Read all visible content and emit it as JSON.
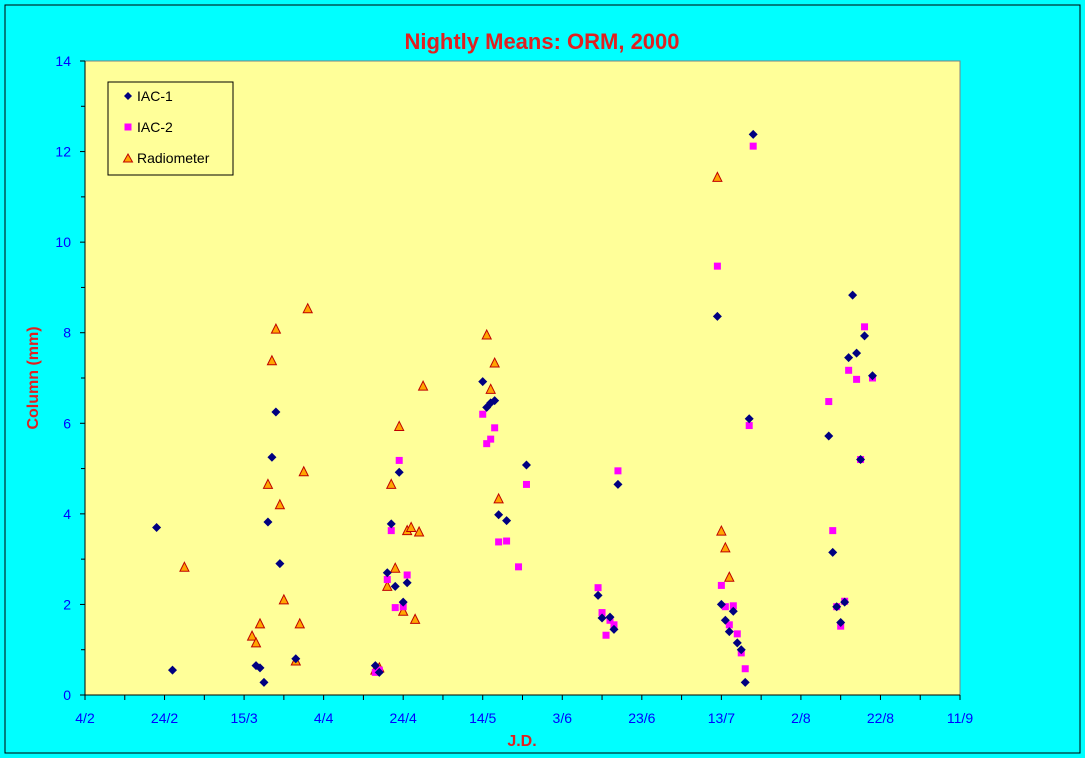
{
  "colors": {
    "background": "#00FFFF",
    "plot_area": "#FFFF99",
    "title": "#E02020",
    "tick_labels": "#0000FF",
    "iac1": "#000080",
    "iac2": "#FF00FF",
    "radiometer_fill": "#FFA500",
    "radiometer_stroke": "#C00000"
  },
  "chart_data": {
    "type": "scatter",
    "title": "Nightly Means: ORM, 2000",
    "xlabel": "J.D.",
    "ylabel": "Column (mm)",
    "xlim": [
      "4/2",
      "11/9"
    ],
    "ylim": [
      0,
      14
    ],
    "x_ticks": [
      "4/2",
      "24/2",
      "15/3",
      "4/4",
      "24/4",
      "14/5",
      "3/6",
      "23/6",
      "13/7",
      "2/8",
      "22/8",
      "11/9"
    ],
    "y_ticks": [
      "0",
      "2",
      "4",
      "6",
      "8",
      "10",
      "12",
      "14"
    ],
    "grid": false,
    "legend_position": "top-left",
    "series": [
      {
        "name": "IAC-1",
        "marker": "diamond",
        "points": [
          [
            "22/2",
            3.7
          ],
          [
            "26/2",
            0.55
          ],
          [
            "18/3",
            0.65
          ],
          [
            "19/3",
            0.6
          ],
          [
            "20/3",
            0.28
          ],
          [
            "21/3",
            3.82
          ],
          [
            "22/3",
            5.25
          ],
          [
            "23/3",
            6.25
          ],
          [
            "24/3",
            2.9
          ],
          [
            "28/3",
            0.8
          ],
          [
            "17/4",
            0.65
          ],
          [
            "18/4",
            0.5
          ],
          [
            "20/4",
            2.7
          ],
          [
            "21/4",
            3.78
          ],
          [
            "22/4",
            2.4
          ],
          [
            "23/4",
            4.92
          ],
          [
            "24/4",
            2.05
          ],
          [
            "25/4",
            2.48
          ],
          [
            "14/5",
            6.92
          ],
          [
            "15/5",
            6.35
          ],
          [
            "16/5",
            6.45
          ],
          [
            "17/5",
            6.5
          ],
          [
            "18/5",
            3.98
          ],
          [
            "20/5",
            3.85
          ],
          [
            "25/5",
            5.08
          ],
          [
            "12/6",
            2.2
          ],
          [
            "13/6",
            1.7
          ],
          [
            "15/6",
            1.72
          ],
          [
            "16/6",
            1.45
          ],
          [
            "17/6",
            4.65
          ],
          [
            "12/7",
            8.36
          ],
          [
            "13/7",
            2.0
          ],
          [
            "14/7",
            1.65
          ],
          [
            "15/7",
            1.4
          ],
          [
            "16/7",
            1.85
          ],
          [
            "17/7",
            1.15
          ],
          [
            "18/7",
            1.0
          ],
          [
            "19/7",
            0.28
          ],
          [
            "20/7",
            6.1
          ],
          [
            "21/7",
            12.38
          ],
          [
            "9/8",
            5.72
          ],
          [
            "10/8",
            3.15
          ],
          [
            "11/8",
            1.95
          ],
          [
            "12/8",
            1.6
          ],
          [
            "13/8",
            2.05
          ],
          [
            "14/8",
            7.45
          ],
          [
            "15/8",
            8.83
          ],
          [
            "16/8",
            7.55
          ],
          [
            "17/8",
            5.2
          ],
          [
            "18/8",
            7.93
          ],
          [
            "20/8",
            7.05
          ]
        ]
      },
      {
        "name": "IAC-2",
        "marker": "square",
        "points": [
          [
            "17/4",
            0.5
          ],
          [
            "18/4",
            0.55
          ],
          [
            "20/4",
            2.55
          ],
          [
            "21/4",
            3.63
          ],
          [
            "22/4",
            1.93
          ],
          [
            "23/4",
            5.18
          ],
          [
            "24/4",
            1.95
          ],
          [
            "25/4",
            2.65
          ],
          [
            "14/5",
            6.2
          ],
          [
            "15/5",
            5.55
          ],
          [
            "16/5",
            5.65
          ],
          [
            "17/5",
            5.9
          ],
          [
            "18/5",
            3.38
          ],
          [
            "20/5",
            3.4
          ],
          [
            "23/5",
            2.83
          ],
          [
            "25/5",
            4.65
          ],
          [
            "12/6",
            2.37
          ],
          [
            "13/6",
            1.82
          ],
          [
            "14/6",
            1.32
          ],
          [
            "15/6",
            1.65
          ],
          [
            "16/6",
            1.55
          ],
          [
            "17/6",
            4.95
          ],
          [
            "12/7",
            9.47
          ],
          [
            "13/7",
            2.42
          ],
          [
            "14/7",
            1.95
          ],
          [
            "15/7",
            1.55
          ],
          [
            "16/7",
            1.97
          ],
          [
            "17/7",
            1.35
          ],
          [
            "18/7",
            0.93
          ],
          [
            "19/7",
            0.58
          ],
          [
            "20/7",
            5.95
          ],
          [
            "21/7",
            12.12
          ],
          [
            "9/8",
            6.48
          ],
          [
            "10/8",
            3.63
          ],
          [
            "11/8",
            1.95
          ],
          [
            "12/8",
            1.52
          ],
          [
            "13/8",
            2.07
          ],
          [
            "14/8",
            7.17
          ],
          [
            "16/8",
            6.97
          ],
          [
            "17/8",
            5.2
          ],
          [
            "18/8",
            8.13
          ],
          [
            "20/8",
            7.0
          ]
        ]
      },
      {
        "name": "Radiometer",
        "marker": "triangle",
        "points": [
          [
            "29/2",
            2.82
          ],
          [
            "17/3",
            1.3
          ],
          [
            "18/3",
            1.15
          ],
          [
            "19/3",
            1.57
          ],
          [
            "21/3",
            4.65
          ],
          [
            "22/3",
            7.38
          ],
          [
            "23/3",
            8.08
          ],
          [
            "24/3",
            4.2
          ],
          [
            "25/3",
            2.1
          ],
          [
            "28/3",
            0.75
          ],
          [
            "29/3",
            1.57
          ],
          [
            "30/3",
            4.93
          ],
          [
            "31/3",
            8.53
          ],
          [
            "17/4",
            0.55
          ],
          [
            "18/4",
            0.6
          ],
          [
            "20/4",
            2.4
          ],
          [
            "21/4",
            4.65
          ],
          [
            "22/4",
            2.8
          ],
          [
            "23/4",
            5.93
          ],
          [
            "24/4",
            1.85
          ],
          [
            "25/4",
            3.63
          ],
          [
            "26/4",
            3.7
          ],
          [
            "27/4",
            1.67
          ],
          [
            "28/4",
            3.6
          ],
          [
            "29/4",
            6.82
          ],
          [
            "15/5",
            7.95
          ],
          [
            "16/5",
            6.75
          ],
          [
            "17/5",
            7.33
          ],
          [
            "18/5",
            4.33
          ],
          [
            "12/7",
            11.43
          ],
          [
            "13/7",
            3.62
          ],
          [
            "14/7",
            3.25
          ],
          [
            "15/7",
            2.6
          ]
        ]
      }
    ]
  }
}
